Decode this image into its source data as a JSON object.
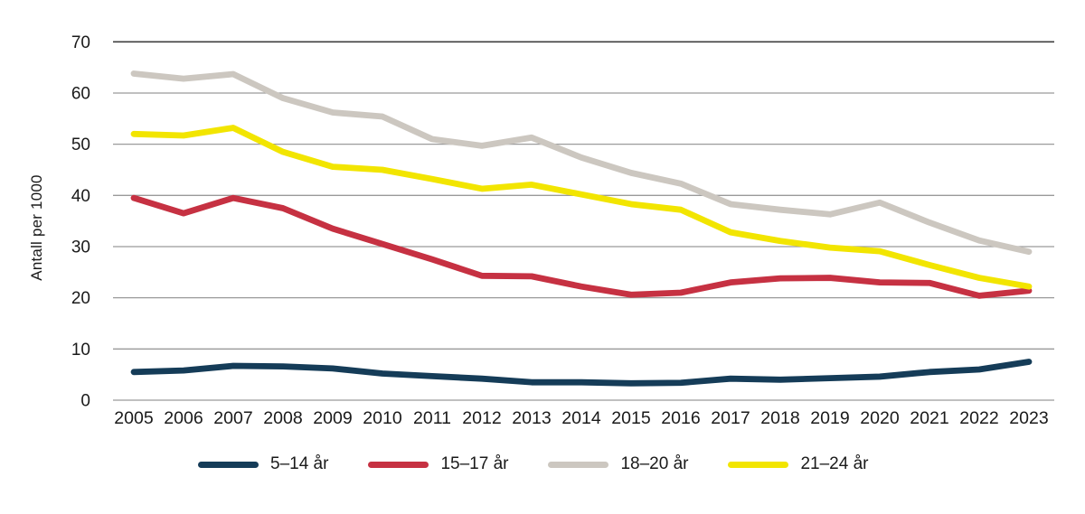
{
  "figure": {
    "background": "#ffffff",
    "text_color": "#1a1a1a",
    "gridline_color": "#9a9a9a",
    "top_gridline_color": "#3f3f3f"
  },
  "chart_data": {
    "type": "line",
    "title": "",
    "xlabel": "",
    "ylabel": "Antall per 1000",
    "ylim": [
      0,
      70
    ],
    "yticks": [
      0,
      10,
      20,
      30,
      40,
      50,
      60,
      70
    ],
    "grid": "horizontal",
    "legend_position": "bottom",
    "x": [
      2005,
      2006,
      2007,
      2008,
      2009,
      2010,
      2011,
      2012,
      2013,
      2014,
      2015,
      2016,
      2017,
      2018,
      2019,
      2020,
      2021,
      2022,
      2023
    ],
    "series": [
      {
        "name": "5–14 år",
        "color": "#153c58",
        "values": [
          5.5,
          5.8,
          6.7,
          6.6,
          6.2,
          5.2,
          4.7,
          4.2,
          3.5,
          3.5,
          3.3,
          3.4,
          4.2,
          4.0,
          4.3,
          4.6,
          5.5,
          6.0,
          7.5
        ]
      },
      {
        "name": "15–17 år",
        "color": "#c63142",
        "values": [
          39.5,
          36.5,
          39.5,
          37.5,
          33.5,
          30.5,
          27.5,
          24.3,
          24.2,
          22.2,
          20.6,
          21.0,
          23.0,
          23.8,
          23.9,
          23.0,
          22.9,
          20.4,
          21.4
        ]
      },
      {
        "name": "18–20 år",
        "color": "#ccc7c0",
        "values": [
          63.8,
          62.8,
          63.7,
          59.0,
          56.2,
          55.4,
          51.0,
          49.7,
          51.3,
          47.4,
          44.4,
          42.3,
          38.3,
          37.2,
          36.3,
          38.6,
          34.7,
          31.2,
          29.0
        ]
      },
      {
        "name": "21–24 år",
        "color": "#f2e500",
        "values": [
          52.0,
          51.7,
          53.2,
          48.5,
          45.6,
          45.0,
          43.2,
          41.3,
          42.1,
          40.2,
          38.3,
          37.2,
          32.8,
          31.1,
          29.8,
          29.1,
          26.4,
          23.9,
          22.2
        ]
      }
    ]
  }
}
